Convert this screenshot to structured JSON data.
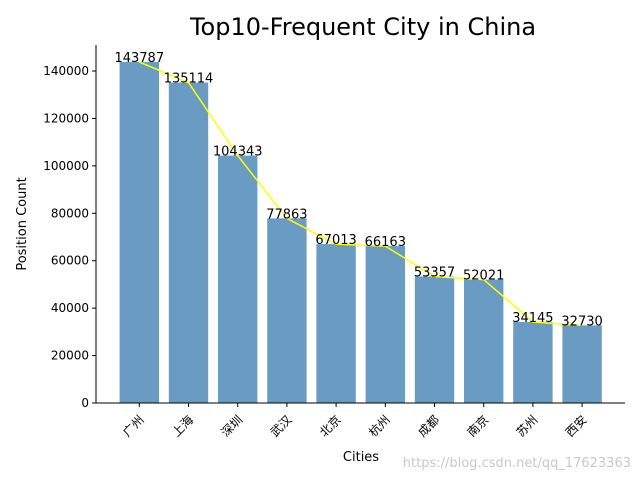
{
  "chart_data": {
    "type": "bar",
    "title": "Top10-Frequent City in China",
    "xlabel": "Cities",
    "ylabel": "Position Count",
    "categories": [
      "广州",
      "上海",
      "深圳",
      "武汉",
      "北京",
      "杭州",
      "成都",
      "南京",
      "苏州",
      "西安"
    ],
    "values": [
      143787,
      135114,
      104343,
      77863,
      67013,
      66163,
      53357,
      52021,
      34145,
      32730
    ],
    "data_labels": [
      "143787",
      "135114",
      "104343",
      "77863",
      "67013",
      "66163",
      "53357",
      "52021",
      "34145",
      "32730"
    ],
    "yticks": [
      0,
      20000,
      40000,
      60000,
      80000,
      100000,
      120000,
      140000
    ],
    "ytick_labels": [
      "0",
      "20000",
      "40000",
      "60000",
      "80000",
      "100000",
      "120000",
      "140000"
    ],
    "ylim": [
      0,
      150974
    ],
    "grid": false,
    "legend": "none",
    "overlay_line": {
      "type": "line",
      "values_follow": "values"
    },
    "colors": {
      "bar": "#6a9bc3",
      "line": "#ffff00",
      "axis": "#000000"
    }
  },
  "watermark": "https://blog.csdn.net/qq_17623363"
}
